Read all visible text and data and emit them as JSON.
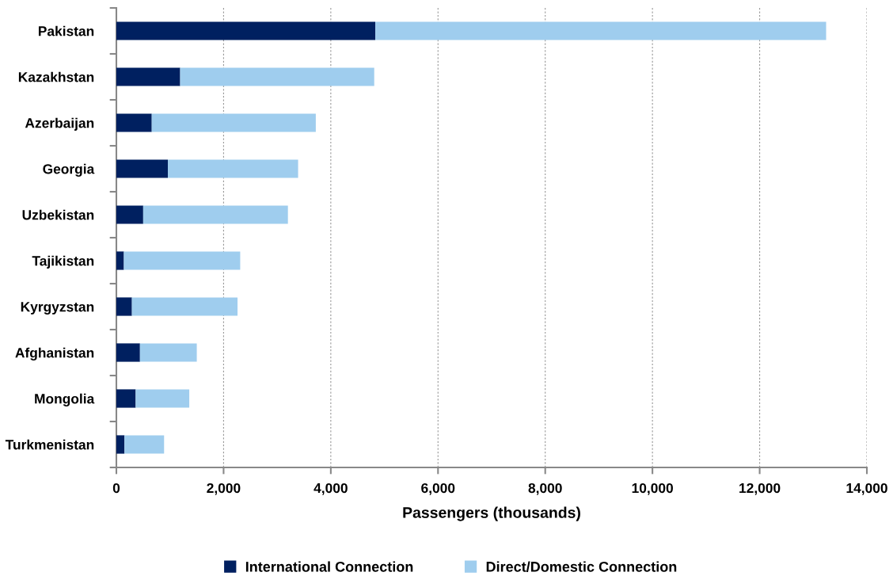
{
  "chart_data": {
    "type": "bar",
    "orientation": "horizontal",
    "stacked": true,
    "xlabel": "Passengers (thousands)",
    "categories": [
      "Pakistan",
      "Kazakhstan",
      "Azerbaijan",
      "Georgia",
      "Uzbekistan",
      "Tajikistan",
      "Kyrgyzstan",
      "Afghanistan",
      "Mongolia",
      "Turkmenistan"
    ],
    "series": [
      {
        "name": "International Connection",
        "color": "#002060",
        "values": [
          4830,
          1190,
          660,
          960,
          500,
          140,
          290,
          440,
          360,
          150
        ]
      },
      {
        "name": "Direct/Domestic Connection",
        "color": "#9fcdee",
        "values": [
          8410,
          3620,
          3060,
          2430,
          2700,
          2170,
          1970,
          1060,
          1000,
          740
        ]
      }
    ],
    "xlim": [
      0,
      14000
    ],
    "xticks": [
      {
        "value": 0,
        "label": "0"
      },
      {
        "value": 2000,
        "label": "2,000"
      },
      {
        "value": 4000,
        "label": "4,000"
      },
      {
        "value": 6000,
        "label": "6,000"
      },
      {
        "value": 8000,
        "label": "8,000"
      },
      {
        "value": 10000,
        "label": "10,000"
      },
      {
        "value": 12000,
        "label": "12,000"
      },
      {
        "value": 14000,
        "label": "14,000"
      }
    ],
    "grid": "x",
    "legend": "bottom"
  }
}
